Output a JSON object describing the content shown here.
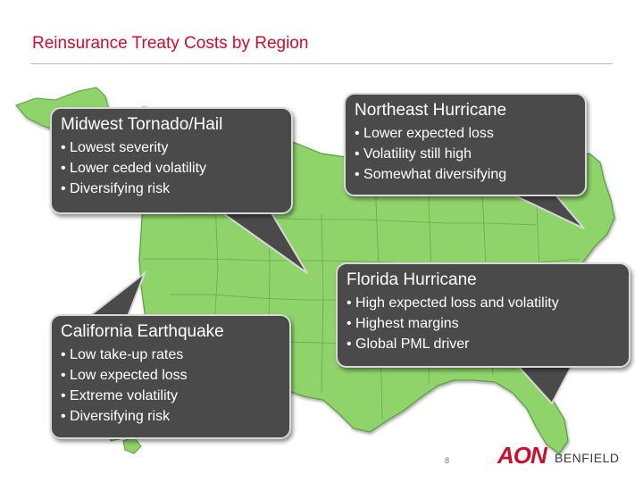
{
  "slide": {
    "title": "Reinsurance Treaty Costs by Region",
    "page_number": "8"
  },
  "callouts": {
    "midwest": {
      "heading": "Midwest Tornado/Hail",
      "bullets": [
        "Lowest severity",
        "Lower ceded volatility",
        "Diversifying risk"
      ]
    },
    "northeast": {
      "heading": "Northeast Hurricane",
      "bullets": [
        "Lower expected loss",
        "Volatility still high",
        "Somewhat diversifying"
      ]
    },
    "florida": {
      "heading": "Florida Hurricane",
      "bullets": [
        "High expected loss and volatility",
        "Highest margins",
        "Global PML driver"
      ]
    },
    "california": {
      "heading": "California Earthquake",
      "bullets": [
        "Low take-up rates",
        "Low expected loss",
        "Extreme volatility",
        "Diversifying risk"
      ]
    }
  },
  "logo": {
    "aon": "AON",
    "benfield": "BENFIELD"
  },
  "colors": {
    "title_red": "#c8102e",
    "map_green": "#8fd46a",
    "callout_gray": "#4a4a4a"
  }
}
